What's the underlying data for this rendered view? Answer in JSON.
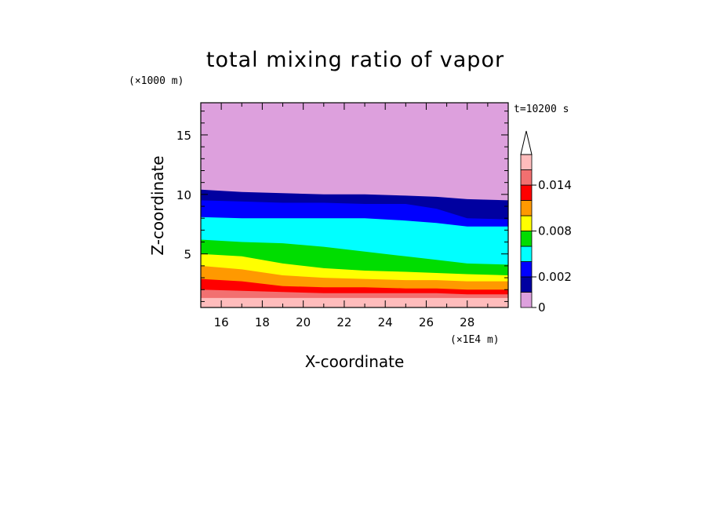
{
  "chart_data": {
    "type": "contour",
    "title": "total mixing ratio of vapor",
    "xlabel": "X-coordinate",
    "ylabel": "Z-coordinate",
    "x_unit": "(×1E4 m)",
    "y_unit": "(×1000 m)",
    "time_label": "t=10200 s",
    "xlim": [
      15,
      30
    ],
    "ylim": [
      0.5,
      17.7
    ],
    "x_ticks": [
      "16",
      "18",
      "20",
      "22",
      "24",
      "26",
      "28"
    ],
    "y_ticks": [
      "5",
      "10",
      "15"
    ],
    "colorbar": {
      "labels": [
        "0",
        "0.002",
        "0.008",
        "0.014"
      ],
      "levels": [
        0,
        0.001,
        0.002,
        0.004,
        0.006,
        0.008,
        0.01,
        0.012,
        0.014,
        0.016
      ],
      "colors": [
        "#dda0dd",
        "#0000a0",
        "#0000ff",
        "#00ffff",
        "#00dd00",
        "#ffff00",
        "#ff9900",
        "#ff0000",
        "#f27070",
        "#ffbcbc"
      ],
      "extend": "max"
    },
    "contour_bands": [
      {
        "level": 0.001,
        "color": "#0000a0",
        "upper_z": [
          10.4,
          10.2,
          10.1,
          10.0,
          10.0,
          9.9,
          9.8,
          9.6,
          9.5
        ]
      },
      {
        "level": 0.002,
        "color": "#0000ff",
        "upper_z": [
          9.5,
          9.4,
          9.3,
          9.3,
          9.2,
          9.2,
          8.8,
          8.0,
          7.9
        ]
      },
      {
        "level": 0.004,
        "color": "#00ffff",
        "upper_z": [
          8.1,
          8.0,
          8.0,
          8.0,
          8.0,
          7.8,
          7.6,
          7.3,
          7.3
        ]
      },
      {
        "level": 0.006,
        "color": "#00dd00",
        "upper_z": [
          6.2,
          6.0,
          5.9,
          5.6,
          5.2,
          4.8,
          4.5,
          4.2,
          4.1
        ]
      },
      {
        "level": 0.008,
        "color": "#ffff00",
        "upper_z": [
          5.0,
          4.8,
          4.2,
          3.8,
          3.6,
          3.5,
          3.4,
          3.3,
          3.2
        ]
      },
      {
        "level": 0.01,
        "color": "#ff9900",
        "upper_z": [
          4.0,
          3.7,
          3.2,
          3.0,
          2.9,
          2.8,
          2.8,
          2.7,
          2.7
        ]
      },
      {
        "level": 0.012,
        "color": "#ff0000",
        "upper_z": [
          2.9,
          2.7,
          2.3,
          2.2,
          2.2,
          2.1,
          2.1,
          2.0,
          2.0
        ]
      },
      {
        "level": 0.014,
        "color": "#f27070",
        "upper_z": [
          2.0,
          1.9,
          1.8,
          1.7,
          1.7,
          1.7,
          1.7,
          1.6,
          1.6
        ]
      },
      {
        "level": 0.016,
        "color": "#ffbcbc",
        "upper_z": [
          1.3,
          1.3,
          1.3,
          1.3,
          1.3,
          1.3,
          1.3,
          1.3,
          1.3
        ]
      }
    ],
    "contour_x": [
      15,
      17,
      19,
      21,
      23,
      25,
      26.5,
      28,
      30
    ]
  }
}
